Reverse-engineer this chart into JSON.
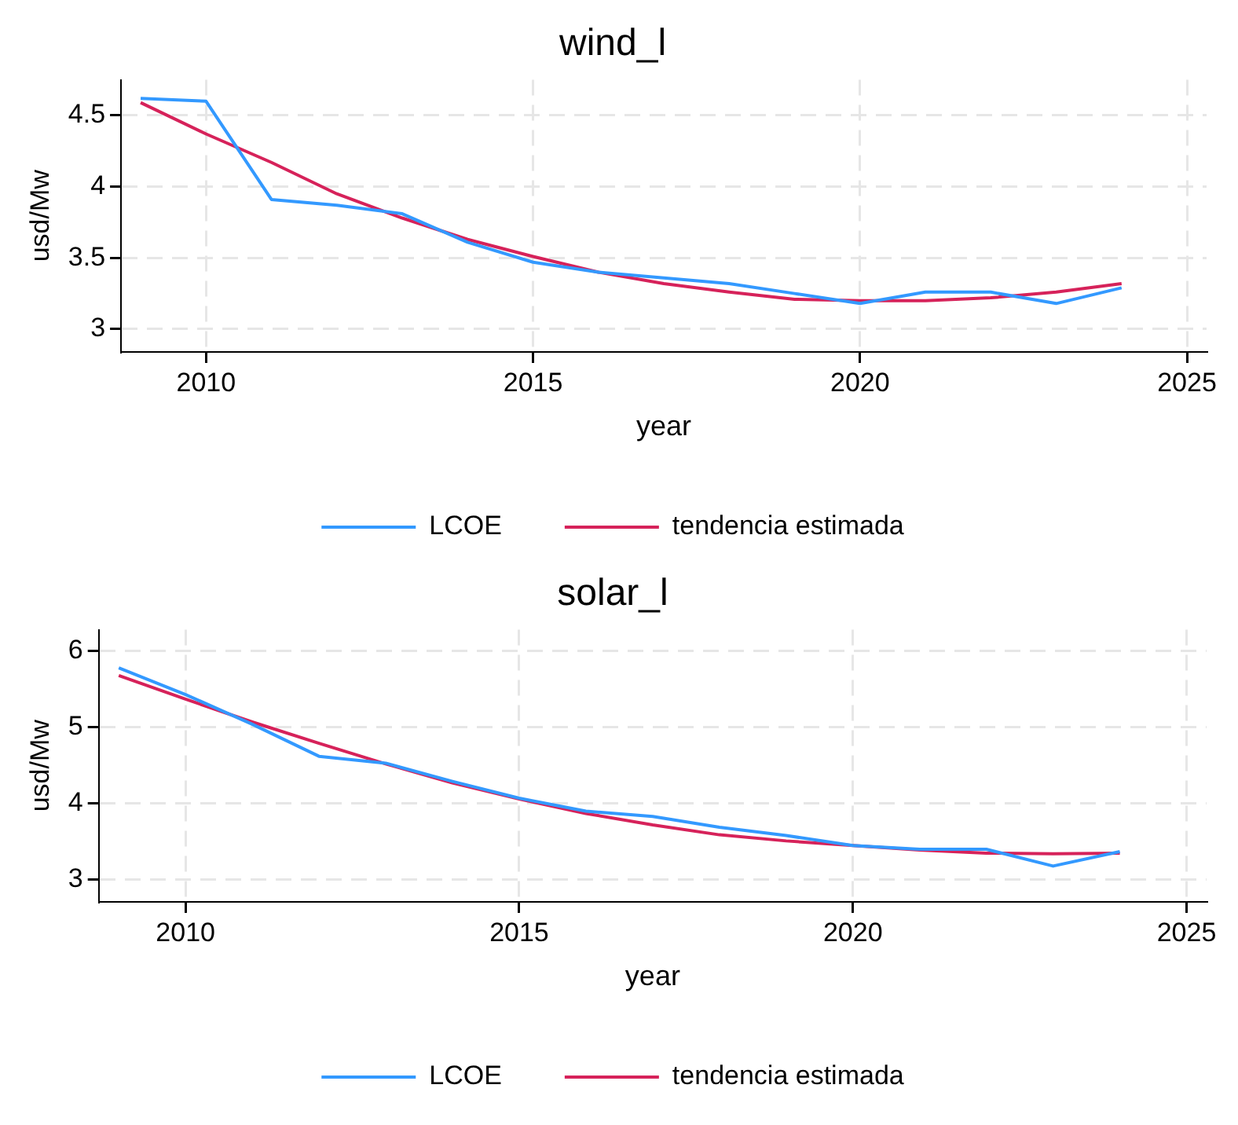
{
  "chart_data": [
    {
      "type": "line",
      "title": "wind_l",
      "xlabel": "year",
      "ylabel": "usd/Mw",
      "x": [
        2009,
        2010,
        2011,
        2012,
        2013,
        2014,
        2015,
        2016,
        2017,
        2018,
        2019,
        2020,
        2021,
        2022,
        2023,
        2024
      ],
      "xlim": [
        2008.7,
        2025.3
      ],
      "xticks": [
        2010,
        2015,
        2020,
        2025
      ],
      "ylim": [
        2.84,
        4.75
      ],
      "yticks": [
        3,
        3.5,
        4,
        4.5
      ],
      "grid": true,
      "legend": "bottom",
      "marker": "none",
      "line_style": "solid",
      "series": [
        {
          "name": "LCOE",
          "color": "#3399ff",
          "values": [
            4.62,
            4.6,
            3.91,
            3.87,
            3.81,
            3.61,
            3.47,
            3.4,
            3.36,
            3.32,
            3.25,
            3.18,
            3.26,
            3.26,
            3.18,
            3.29
          ]
        },
        {
          "name": "tendencia estimada",
          "color": "#d6225a",
          "values": [
            4.59,
            4.37,
            4.17,
            3.95,
            3.78,
            3.63,
            3.51,
            3.4,
            3.32,
            3.26,
            3.21,
            3.2,
            3.2,
            3.22,
            3.26,
            3.32
          ]
        }
      ]
    },
    {
      "type": "line",
      "title": "solar_l",
      "xlabel": "year",
      "ylabel": "usd/Mw",
      "x": [
        2009,
        2010,
        2011,
        2012,
        2013,
        2014,
        2015,
        2016,
        2017,
        2018,
        2019,
        2020,
        2021,
        2022,
        2023,
        2024
      ],
      "xlim": [
        2008.7,
        2025.3
      ],
      "xticks": [
        2010,
        2015,
        2020,
        2025
      ],
      "ylim": [
        2.71,
        6.28
      ],
      "yticks": [
        3,
        4,
        5,
        6
      ],
      "grid": true,
      "legend": "bottom",
      "marker": "none",
      "line_style": "solid",
      "series": [
        {
          "name": "LCOE",
          "color": "#3399ff",
          "values": [
            5.78,
            5.43,
            5.04,
            4.62,
            4.53,
            4.29,
            4.07,
            3.9,
            3.83,
            3.69,
            3.58,
            3.45,
            3.4,
            3.4,
            3.18,
            3.37
          ]
        },
        {
          "name": "tendencia estimada",
          "color": "#d6225a",
          "values": [
            5.68,
            5.37,
            5.07,
            4.79,
            4.52,
            4.27,
            4.06,
            3.87,
            3.72,
            3.59,
            3.51,
            3.45,
            3.39,
            3.35,
            3.34,
            3.35
          ]
        }
      ]
    }
  ]
}
